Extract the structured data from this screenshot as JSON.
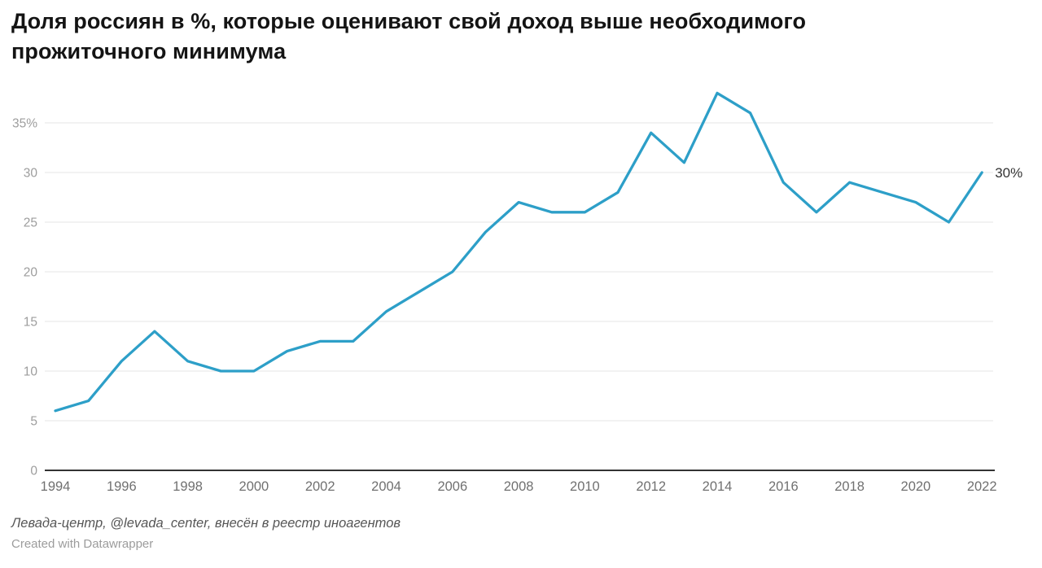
{
  "header": {
    "title": "Доля россиян в %, которые оценивают свой доход выше необходимого прожиточного минимума"
  },
  "chart_data": {
    "type": "line",
    "x": [
      1994,
      1995,
      1996,
      1997,
      1998,
      1999,
      2000,
      2001,
      2002,
      2003,
      2004,
      2005,
      2006,
      2007,
      2008,
      2009,
      2010,
      2011,
      2012,
      2013,
      2014,
      2015,
      2016,
      2017,
      2018,
      2019,
      2020,
      2021,
      2022
    ],
    "values": [
      6,
      7,
      11,
      14,
      11,
      10,
      10,
      12,
      13,
      13,
      16,
      18,
      20,
      24,
      27,
      26,
      26,
      28,
      34,
      31,
      38,
      36,
      29,
      26,
      29,
      28,
      27,
      25,
      30
    ],
    "title": "Доля россиян в %, которые оценивают свой доход выше необходимого прожиточного минимума",
    "xlabel": "",
    "ylabel": "",
    "ylim": [
      0,
      38
    ],
    "yticks": [
      0,
      5,
      10,
      15,
      20,
      25,
      30,
      35
    ],
    "ytick_labels": [
      "0",
      "5",
      "10",
      "15",
      "20",
      "25",
      "30",
      "35%"
    ],
    "xticks": [
      1994,
      1996,
      1998,
      2000,
      2002,
      2004,
      2006,
      2008,
      2010,
      2012,
      2014,
      2016,
      2018,
      2020,
      2022
    ],
    "grid": "horizontal",
    "legend": "none",
    "end_label": "30%",
    "colors": {
      "line": "#2d9fc8",
      "grid": "#e4e4e4",
      "zero_axis": "#333333",
      "ytick_text": "#9d9d9d",
      "xtick_text": "#707070",
      "end_label_text": "#333333"
    }
  },
  "footer": {
    "source": "Левада-центр, @levada_center, внесён в реестр иноагентов",
    "credit": "Created with Datawrapper"
  }
}
